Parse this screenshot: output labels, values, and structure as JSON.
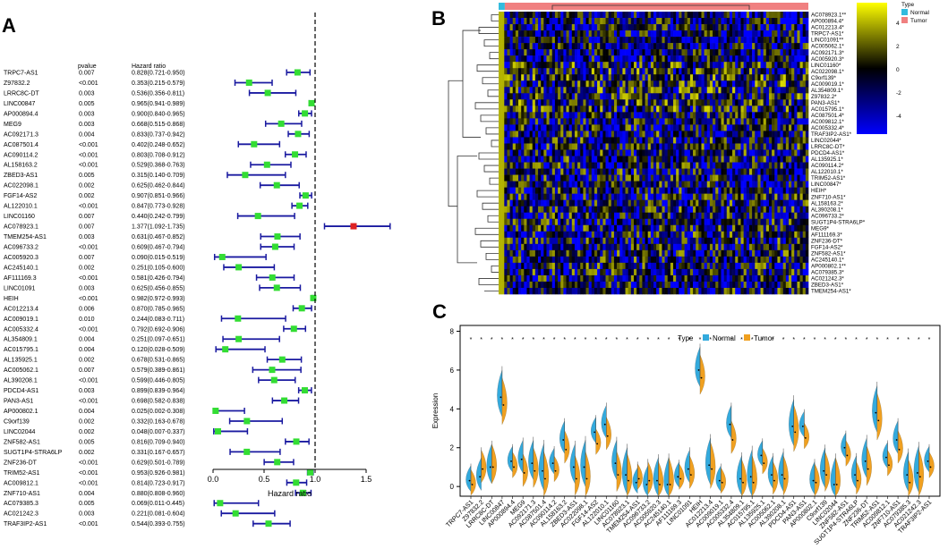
{
  "panels": {
    "a": "A",
    "b": "B",
    "c": "C"
  },
  "chart_data": [
    {
      "type": "forest",
      "pvalue_header": "pvalue",
      "hr_header": "Hazard ratio",
      "xlabel": "Hazard ratio",
      "xticks": [
        "0.0",
        "0.5",
        "1.0",
        "1.5"
      ],
      "xlim": [
        0,
        1.5
      ],
      "reference_line": 1.0,
      "colors": {
        "protective": "#33dd33",
        "risk": "#dd2222",
        "ci": "#1a1aa0"
      },
      "rows": [
        {
          "gene": "TRPC7-AS1",
          "p": "0.007",
          "text": "0.828(0.721-0.950)",
          "hr": 0.828,
          "lo": 0.721,
          "hi": 0.95
        },
        {
          "gene": "Z97832.2",
          "p": "<0.001",
          "text": "0.353(0.215-0.579)",
          "hr": 0.353,
          "lo": 0.215,
          "hi": 0.579
        },
        {
          "gene": "LRRC8C-DT",
          "p": "0.003",
          "text": "0.536(0.356-0.811)",
          "hr": 0.536,
          "lo": 0.356,
          "hi": 0.811
        },
        {
          "gene": "LINC00847",
          "p": "0.005",
          "text": "0.965(0.941-0.989)",
          "hr": 0.965,
          "lo": 0.941,
          "hi": 0.989
        },
        {
          "gene": "AP000894.4",
          "p": "0.003",
          "text": "0.900(0.840-0.965)",
          "hr": 0.9,
          "lo": 0.84,
          "hi": 0.965
        },
        {
          "gene": "MEG9",
          "p": "0.003",
          "text": "0.668(0.515-0.868)",
          "hr": 0.668,
          "lo": 0.515,
          "hi": 0.868
        },
        {
          "gene": "AC092171.3",
          "p": "0.004",
          "text": "0.833(0.737-0.942)",
          "hr": 0.833,
          "lo": 0.737,
          "hi": 0.942
        },
        {
          "gene": "AC087501.4",
          "p": "<0.001",
          "text": "0.402(0.248-0.652)",
          "hr": 0.402,
          "lo": 0.248,
          "hi": 0.652
        },
        {
          "gene": "AC090114.2",
          "p": "<0.001",
          "text": "0.803(0.708-0.912)",
          "hr": 0.803,
          "lo": 0.708,
          "hi": 0.912
        },
        {
          "gene": "AL158163.2",
          "p": "<0.001",
          "text": "0.529(0.368-0.763)",
          "hr": 0.529,
          "lo": 0.368,
          "hi": 0.763
        },
        {
          "gene": "ZBED3-AS1",
          "p": "0.005",
          "text": "0.315(0.140-0.709)",
          "hr": 0.315,
          "lo": 0.14,
          "hi": 0.709
        },
        {
          "gene": "AC022098.1",
          "p": "0.002",
          "text": "0.625(0.462-0.844)",
          "hr": 0.625,
          "lo": 0.462,
          "hi": 0.844
        },
        {
          "gene": "FGF14-AS2",
          "p": "0.002",
          "text": "0.907(0.851-0.966)",
          "hr": 0.907,
          "lo": 0.851,
          "hi": 0.966
        },
        {
          "gene": "AL122010.1",
          "p": "<0.001",
          "text": "0.847(0.773-0.928)",
          "hr": 0.847,
          "lo": 0.773,
          "hi": 0.928
        },
        {
          "gene": "LINC01160",
          "p": "0.007",
          "text": "0.440(0.242-0.799)",
          "hr": 0.44,
          "lo": 0.242,
          "hi": 0.799
        },
        {
          "gene": "AC078923.1",
          "p": "0.007",
          "text": "1.377(1.092-1.735)",
          "hr": 1.377,
          "lo": 1.092,
          "hi": 1.735
        },
        {
          "gene": "TMEM254-AS1",
          "p": "0.003",
          "text": "0.631(0.467-0.852)",
          "hr": 0.631,
          "lo": 0.467,
          "hi": 0.852
        },
        {
          "gene": "AC096733.2",
          "p": "<0.001",
          "text": "0.609(0.467-0.794)",
          "hr": 0.609,
          "lo": 0.467,
          "hi": 0.794
        },
        {
          "gene": "AC005920.3",
          "p": "0.007",
          "text": "0.090(0.015-0.519)",
          "hr": 0.09,
          "lo": 0.015,
          "hi": 0.519
        },
        {
          "gene": "AC245140.1",
          "p": "0.002",
          "text": "0.251(0.105-0.600)",
          "hr": 0.251,
          "lo": 0.105,
          "hi": 0.6
        },
        {
          "gene": "AF111169.3",
          "p": "<0.001",
          "text": "0.581(0.426-0.794)",
          "hr": 0.581,
          "lo": 0.426,
          "hi": 0.794
        },
        {
          "gene": "LINC01091",
          "p": "0.003",
          "text": "0.625(0.456-0.855)",
          "hr": 0.625,
          "lo": 0.456,
          "hi": 0.855
        },
        {
          "gene": "HEIH",
          "p": "<0.001",
          "text": "0.982(0.972-0.993)",
          "hr": 0.982,
          "lo": 0.972,
          "hi": 0.993
        },
        {
          "gene": "AC012213.4",
          "p": "0.006",
          "text": "0.870(0.785-0.965)",
          "hr": 0.87,
          "lo": 0.785,
          "hi": 0.965
        },
        {
          "gene": "AC009019.1",
          "p": "0.010",
          "text": "0.244(0.083-0.711)",
          "hr": 0.244,
          "lo": 0.083,
          "hi": 0.711
        },
        {
          "gene": "AC005332.4",
          "p": "<0.001",
          "text": "0.792(0.692-0.906)",
          "hr": 0.792,
          "lo": 0.692,
          "hi": 0.906
        },
        {
          "gene": "AL354809.1",
          "p": "0.004",
          "text": "0.251(0.097-0.651)",
          "hr": 0.251,
          "lo": 0.097,
          "hi": 0.651
        },
        {
          "gene": "AC015795.1",
          "p": "0.004",
          "text": "0.120(0.028-0.509)",
          "hr": 0.12,
          "lo": 0.028,
          "hi": 0.509
        },
        {
          "gene": "AL135925.1",
          "p": "0.002",
          "text": "0.678(0.531-0.865)",
          "hr": 0.678,
          "lo": 0.531,
          "hi": 0.865
        },
        {
          "gene": "AC005062.1",
          "p": "0.007",
          "text": "0.579(0.389-0.861)",
          "hr": 0.579,
          "lo": 0.389,
          "hi": 0.861
        },
        {
          "gene": "AL390208.1",
          "p": "<0.001",
          "text": "0.599(0.446-0.805)",
          "hr": 0.599,
          "lo": 0.446,
          "hi": 0.805
        },
        {
          "gene": "PDCD4-AS1",
          "p": "0.003",
          "text": "0.899(0.839-0.964)",
          "hr": 0.899,
          "lo": 0.839,
          "hi": 0.964
        },
        {
          "gene": "PAN3-AS1",
          "p": "<0.001",
          "text": "0.698(0.582-0.838)",
          "hr": 0.698,
          "lo": 0.582,
          "hi": 0.838
        },
        {
          "gene": "AP000802.1",
          "p": "0.004",
          "text": "0.025(0.002-0.308)",
          "hr": 0.025,
          "lo": 0.002,
          "hi": 0.308
        },
        {
          "gene": "C9orf139",
          "p": "0.002",
          "text": "0.332(0.163-0.678)",
          "hr": 0.332,
          "lo": 0.163,
          "hi": 0.678
        },
        {
          "gene": "LINC02044",
          "p": "0.002",
          "text": "0.048(0.007-0.337)",
          "hr": 0.048,
          "lo": 0.007,
          "hi": 0.337
        },
        {
          "gene": "ZNF582-AS1",
          "p": "0.005",
          "text": "0.816(0.709-0.940)",
          "hr": 0.816,
          "lo": 0.709,
          "hi": 0.94
        },
        {
          "gene": "SUGT1P4-STRA6LP",
          "p": "0.002",
          "text": "0.331(0.167-0.657)",
          "hr": 0.331,
          "lo": 0.167,
          "hi": 0.657
        },
        {
          "gene": "ZNF236-DT",
          "p": "<0.001",
          "text": "0.629(0.501-0.789)",
          "hr": 0.629,
          "lo": 0.501,
          "hi": 0.789
        },
        {
          "gene": "TRIM52-AS1",
          "p": "<0.001",
          "text": "0.953(0.926-0.981)",
          "hr": 0.953,
          "lo": 0.926,
          "hi": 0.981
        },
        {
          "gene": "AC009812.1",
          "p": "<0.001",
          "text": "0.814(0.723-0.917)",
          "hr": 0.814,
          "lo": 0.723,
          "hi": 0.917
        },
        {
          "gene": "ZNF710-AS1",
          "p": "0.004",
          "text": "0.880(0.808-0.960)",
          "hr": 0.88,
          "lo": 0.808,
          "hi": 0.96
        },
        {
          "gene": "AC079385.3",
          "p": "0.005",
          "text": "0.069(0.011-0.445)",
          "hr": 0.069,
          "lo": 0.011,
          "hi": 0.445
        },
        {
          "gene": "AC021242.3",
          "p": "0.003",
          "text": "0.221(0.081-0.604)",
          "hr": 0.221,
          "lo": 0.081,
          "hi": 0.604
        },
        {
          "gene": "TRAF3IP2-AS1",
          "p": "<0.001",
          "text": "0.544(0.393-0.755)",
          "hr": 0.544,
          "lo": 0.393,
          "hi": 0.755
        }
      ]
    },
    {
      "type": "heatmap",
      "legend_title": "Type",
      "groups": [
        {
          "name": "Normal",
          "color": "#33bbdd",
          "fraction": 0.02
        },
        {
          "name": "Tumor",
          "color": "#f08080",
          "fraction": 0.98
        }
      ],
      "colorbar": {
        "ticks": [
          "4",
          "2",
          "0",
          "-2",
          "-4"
        ],
        "colors": [
          "#ffff00",
          "#000000",
          "#0000ff"
        ]
      },
      "rows": [
        "AC078923.1**",
        "AP000894.4*",
        "AC012213.4*",
        "TRPC7-AS1*",
        "LINC01091**",
        "AC005062.1*",
        "AC092171.3*",
        "AC005920.3*",
        "LINC01160*",
        "AC022098.1*",
        "C9orf139*",
        "AC009019.1*",
        "AL354809.1*",
        "Z97832.2*",
        "PAN3-AS1*",
        "AC015795.1*",
        "AC087501.4*",
        "AC009812.1*",
        "AC005332.4*",
        "TRAF3IP2-AS1*",
        "LINC02044*",
        "LRRC8C-DT*",
        "PDCD4-AS1*",
        "AL135925.1*",
        "AC090114.2*",
        "AL122010.1*",
        "TRIM52-AS1*",
        "LINC00847*",
        "HEIH*",
        "ZNF710-AS1*",
        "AL158163.2*",
        "AL390208.1*",
        "AC096733.2*",
        "SUGT1P4-STRA6LP*",
        "MEG9*",
        "AF111169.3*",
        "ZNF236-DT*",
        "FGF14-AS2*",
        "ZNF582-AS1*",
        "AC245140.1*",
        "AP000802.1**",
        "AC079385.3*",
        "AC021242.3*",
        "ZBED3-AS1*",
        "TMEM254-AS1*"
      ]
    },
    {
      "type": "violin",
      "legend_title": "Type",
      "series": [
        {
          "name": "Normal",
          "color": "#33aadd"
        },
        {
          "name": "Tumor",
          "color": "#f0a020"
        }
      ],
      "ylabel": "Expression",
      "yticks": [
        "0",
        "2",
        "4",
        "6",
        "8"
      ],
      "ylim": [
        -0.5,
        8.3
      ],
      "significance_mark": "*",
      "categories": [
        "TRPC7-AS1",
        "Z97832.2",
        "LRRC8C-DT",
        "LINC00847",
        "AP000894.4",
        "MEG9",
        "AC092171.3",
        "AC087501.4",
        "AC090114.2",
        "AL158163.2",
        "ZBED3-AS1",
        "AC022098.1",
        "FGF14-AS2",
        "AL122010.1",
        "LINC01160",
        "AC078923.1",
        "TMEM254-AS1",
        "AC096733.2",
        "AC005920.3",
        "AC245140.1",
        "AF111169.3",
        "LINC01091",
        "HEIH",
        "AC012213.4",
        "AC009019.1",
        "AC005332.4",
        "AL354809.1",
        "AC015795.1",
        "AL135925.1",
        "AC005062.1",
        "AL390208.1",
        "PDCD4-AS1",
        "PAN3-AS1",
        "AP000802.1",
        "C9orf139",
        "LINC02044",
        "ZNF582-AS1",
        "SUGT1P4-STRA6LP",
        "ZNF236-DT",
        "TRIM52-AS1",
        "AC009812.1",
        "ZNF710-AS1",
        "AC079385.3",
        "AC021242.3",
        "TRAF3IP2-AS1"
      ],
      "normal_median": [
        0.3,
        0.5,
        1.0,
        4.6,
        1.3,
        1.4,
        1.2,
        0.8,
        1.2,
        2.4,
        1.0,
        1.0,
        2.8,
        3.2,
        1.2,
        0.6,
        0.2,
        0.1,
        0.3,
        0.1,
        0.5,
        0.9,
        6.0,
        1.1,
        0.3,
        3.2,
        0.4,
        0.5,
        1.6,
        0.6,
        0.6,
        3.1,
        3.1,
        0.3,
        0.8,
        0.1,
        2.0,
        0.6,
        1.3,
        3.8,
        1.5,
        2.4,
        0.6,
        0.7,
        1.3
      ],
      "tumor_median": [
        0.1,
        0.9,
        1.0,
        4.2,
        1.0,
        0.7,
        0.8,
        0.4,
        0.8,
        1.9,
        0.4,
        0.4,
        2.2,
        2.6,
        0.6,
        0.3,
        0.4,
        0.3,
        0.1,
        0.1,
        0.4,
        0.6,
        5.6,
        0.9,
        0.2,
        2.4,
        0.2,
        0.2,
        1.2,
        0.3,
        0.4,
        2.8,
        2.5,
        0.2,
        0.6,
        0.1,
        1.6,
        0.3,
        0.9,
        3.4,
        1.1,
        1.9,
        0.2,
        0.5,
        1.0
      ]
    }
  ]
}
